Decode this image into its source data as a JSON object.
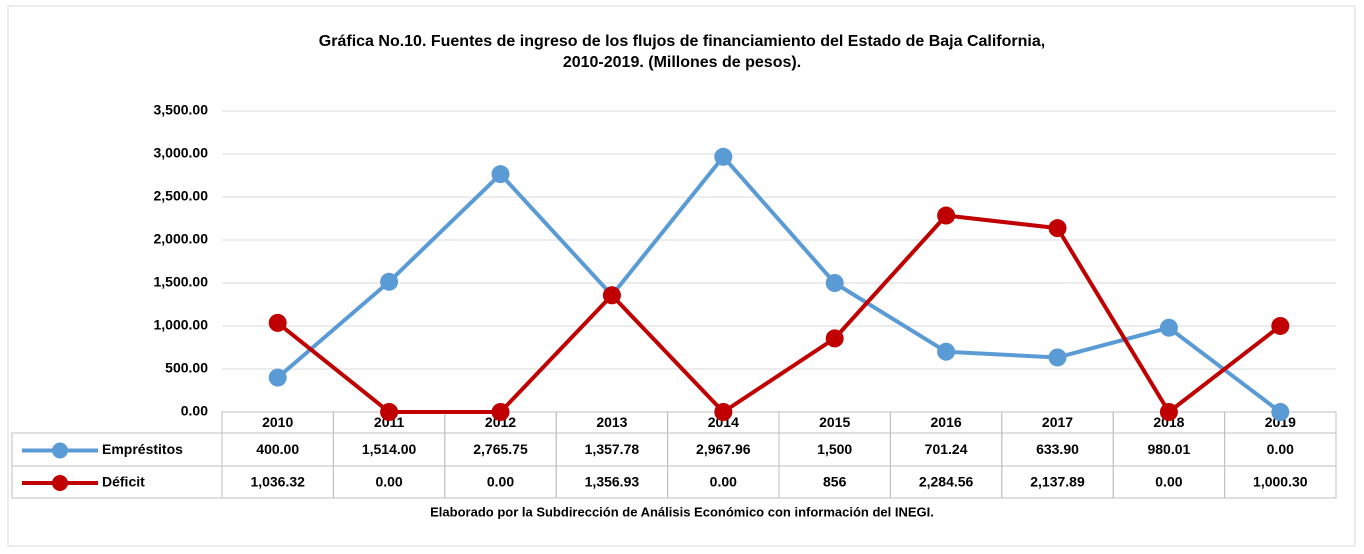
{
  "chart_data": {
    "type": "line",
    "title": [
      "Gráfica No.10. Fuentes de ingreso de los flujos de financiamiento del Estado de Baja California,",
      "2010-2019. (Millones de pesos)."
    ],
    "categories": [
      "2010",
      "2011",
      "2012",
      "2013",
      "2014",
      "2015",
      "2016",
      "2017",
      "2018",
      "2019"
    ],
    "series": [
      {
        "name": "Empréstitos",
        "color": "#5b9bd5",
        "values": [
          400,
          1514,
          2765.75,
          1357.78,
          2967.96,
          1500,
          701.24,
          633.9,
          980.01,
          0
        ],
        "value_labels": [
          "400.00",
          "1,514.00",
          "2,765.75",
          "1,357.78",
          "2,967.96",
          "1,500",
          "701.24",
          "633.90",
          "980.01",
          "0.00"
        ]
      },
      {
        "name": "Déficit",
        "color": "#c00000",
        "values": [
          1036.32,
          0,
          0,
          1356.93,
          0,
          856,
          2284.56,
          2137.89,
          0,
          1000.3
        ],
        "value_labels": [
          "1,036.32",
          "0.00",
          "0.00",
          "1,356.93",
          "0.00",
          "856",
          "2,284.56",
          "2,137.89",
          "0.00",
          "1,000.30"
        ]
      }
    ],
    "ylim": [
      0,
      3500
    ],
    "yticks": [
      {
        "value": 0,
        "label": "0.00"
      },
      {
        "value": 500,
        "label": "500.00"
      },
      {
        "value": 1000,
        "label": "1,000.00"
      },
      {
        "value": 1500,
        "label": "1,500.00"
      },
      {
        "value": 2000,
        "label": "2,000.00"
      },
      {
        "value": 2500,
        "label": "2,500.00"
      },
      {
        "value": 3000,
        "label": "3,000.00"
      },
      {
        "value": 3500,
        "label": "3,500.00"
      }
    ],
    "grid": true,
    "note": "Elaborado por la Subdirección de Análisis Económico con información del INEGI."
  }
}
